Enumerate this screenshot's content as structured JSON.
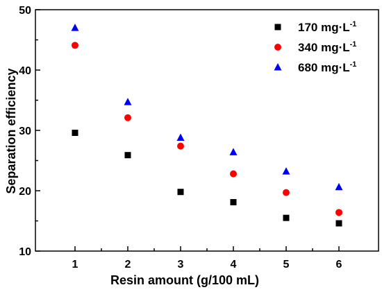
{
  "chart_data": {
    "type": "scatter",
    "xlabel": "Resin amount (g/100 mL)",
    "ylabel": "Separation efficiency",
    "x": [
      1,
      2,
      3,
      4,
      5,
      6
    ],
    "xlim": [
      0.25,
      6.75
    ],
    "ylim": [
      10,
      50
    ],
    "xticks": [
      1,
      2,
      3,
      4,
      5,
      6
    ],
    "yticks": [
      10,
      20,
      30,
      40,
      50
    ],
    "grid": false,
    "legend_position": "top-right",
    "series": [
      {
        "name": "170 mg·L",
        "superscript": "-1",
        "marker": "square",
        "color": "#000000",
        "values": [
          29.6,
          25.9,
          19.8,
          18.1,
          15.5,
          14.6
        ]
      },
      {
        "name": "340 mg·L",
        "superscript": "-1",
        "marker": "circle",
        "color": "#ff0000",
        "values": [
          44.1,
          32.1,
          27.4,
          22.8,
          19.7,
          16.4
        ]
      },
      {
        "name": "680 mg·L",
        "superscript": "-1",
        "marker": "triangle",
        "color": "#0000ff",
        "values": [
          47.0,
          34.7,
          28.8,
          26.4,
          23.2,
          20.6
        ]
      }
    ]
  }
}
